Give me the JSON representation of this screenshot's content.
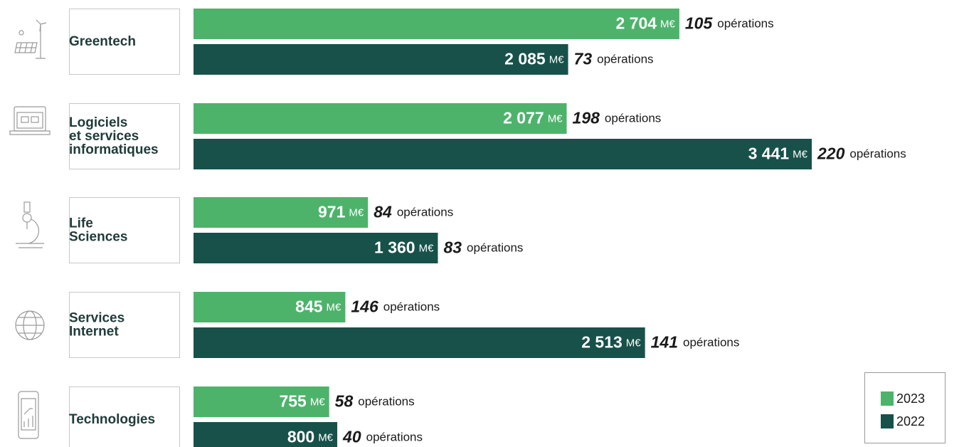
{
  "chart_data": {
    "type": "bar",
    "categories": [
      [
        "Greentech"
      ],
      [
        "Logiciels",
        "et services",
        "informatiques"
      ],
      [
        "Life",
        "Sciences"
      ],
      [
        "Services",
        "Internet"
      ],
      [
        "Technologies"
      ]
    ],
    "unit": "M€",
    "count_label": "opérations",
    "series": [
      {
        "name": "2023",
        "color": "#4db36b",
        "values": [
          2704,
          2077,
          971,
          845,
          755
        ],
        "value_labels": [
          "2 704",
          "2 077",
          "971",
          "845",
          "755"
        ],
        "operations": [
          105,
          198,
          84,
          146,
          58
        ]
      },
      {
        "name": "2022",
        "color": "#17514a",
        "values": [
          2085,
          3441,
          1360,
          2513,
          800
        ],
        "value_labels": [
          "2 085",
          "3 441",
          "1 360",
          "2 513",
          "800"
        ],
        "operations": [
          73,
          220,
          83,
          141,
          40
        ]
      }
    ],
    "legend": "bottom-right"
  }
}
